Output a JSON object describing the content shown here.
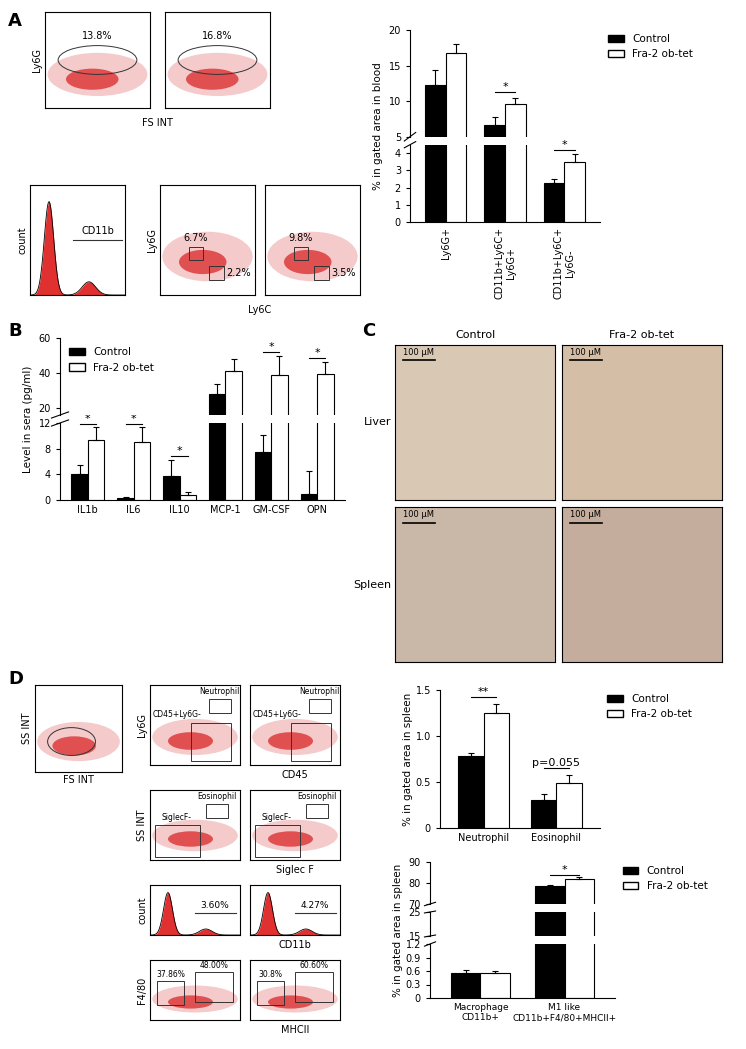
{
  "chart_data": [
    {
      "type": "bar",
      "ylabel": "% in gated area in blood",
      "categories": [
        "Ly6G+",
        "CD11b+Ly6C+\nLy6G+",
        "CD11b+Ly6C+\nLy6G-"
      ],
      "series": [
        {
          "name": "Control",
          "color": "#000000",
          "values": [
            12.2,
            6.7,
            2.25
          ],
          "errors": [
            2.2,
            1.1,
            0.25
          ]
        },
        {
          "name": "Fra-2 ob-tet",
          "color": "#ffffff",
          "values": [
            16.8,
            9.6,
            3.5
          ],
          "errors": [
            1.2,
            0.9,
            0.45
          ]
        }
      ],
      "y_segments": [
        {
          "ylim": [
            0,
            4.5
          ],
          "yticks": [
            0,
            1,
            2,
            3,
            4
          ]
        },
        {
          "ylim": [
            5,
            20
          ],
          "yticks": [
            5,
            10,
            15,
            20
          ]
        }
      ],
      "significance": [
        null,
        "*",
        "*"
      ],
      "legend": "right"
    },
    {
      "type": "bar",
      "ylabel": "Level in sera (pg/ml)",
      "categories": [
        "IL1b",
        "IL6",
        "IL10",
        "MCP-1",
        "GM-CSF",
        "OPN"
      ],
      "series": [
        {
          "name": "Control",
          "color": "#000000",
          "values": [
            4,
            0.3,
            3.8,
            28,
            7.5,
            1
          ],
          "errors": [
            1.5,
            0.1,
            2.5,
            6,
            2.6,
            3.5
          ]
        },
        {
          "name": "Fra-2 ob-tet",
          "color": "#ffffff",
          "values": [
            9.3,
            9,
            0.8,
            41,
            39,
            39.5
          ],
          "errors": [
            2,
            2.3,
            0.5,
            7,
            11,
            7
          ]
        }
      ],
      "y_segments": [
        {
          "ylim": [
            0,
            12
          ],
          "yticks": [
            0,
            4,
            8,
            12
          ]
        },
        {
          "ylim": [
            16,
            60
          ],
          "yticks": [
            20,
            40,
            60
          ]
        }
      ],
      "significance": [
        "*",
        "*",
        "*",
        null,
        "*",
        "*"
      ],
      "legend": "upper left"
    },
    {
      "type": "bar",
      "ylabel": "% in gated area in spleen",
      "categories": [
        "Neutrophil",
        "Eosinophil"
      ],
      "series": [
        {
          "name": "Control",
          "color": "#000000",
          "values": [
            0.78,
            0.3
          ],
          "errors": [
            0.04,
            0.07
          ]
        },
        {
          "name": "Fra-2 ob-tet",
          "color": "#ffffff",
          "values": [
            1.25,
            0.49
          ],
          "errors": [
            0.1,
            0.09
          ]
        }
      ],
      "ylim": [
        0,
        1.5
      ],
      "yticks": [
        0,
        0.5,
        1.0,
        1.5
      ],
      "significance": [
        "**",
        "p=0.055"
      ],
      "legend": "right"
    },
    {
      "type": "bar",
      "ylabel": "% in gated area in spleen",
      "categories": [
        "Macrophage\nCD11b+",
        "M1 like\nCD11b+F4/80+MHCII+"
      ],
      "series": [
        {
          "name": "Control",
          "color": "#000000",
          "values": [
            0.55,
            78.5
          ],
          "errors": [
            0.08,
            0.4
          ]
        },
        {
          "name": "Fra-2 ob-tet",
          "color": "#ffffff",
          "values": [
            0.55,
            82.0
          ],
          "errors": [
            0.05,
            0.8
          ]
        }
      ],
      "y_segments": [
        {
          "ylim": [
            0,
            1.2
          ],
          "yticks": [
            0,
            0.3,
            0.6,
            0.9,
            1.2
          ]
        },
        {
          "ylim": [
            15,
            25
          ],
          "yticks": [
            15,
            25
          ]
        },
        {
          "ylim": [
            70,
            90
          ],
          "yticks": [
            70,
            80,
            90
          ]
        }
      ],
      "significance": [
        null,
        "*"
      ],
      "legend": "right"
    }
  ],
  "panel_labels": [
    "A",
    "B",
    "C",
    "D"
  ],
  "panels": {
    "A": {
      "flow_top": {
        "ylabel": "Ly6G",
        "xlabel": "FS INT",
        "gates": [
          "13.8%",
          "16.8%"
        ]
      },
      "flow_bottom": {
        "hist_ylabel": "count",
        "hist_gate": "CD11b",
        "ylabel": "Ly6G",
        "xlabel": "Ly6C",
        "gates": [
          [
            "6.7%",
            "2.2%"
          ],
          [
            "9.8%",
            "3.5%"
          ]
        ]
      }
    },
    "C": {
      "columns": [
        "Control",
        "Fra-2 ob-tet"
      ],
      "rows": [
        "Liver",
        "Spleen"
      ],
      "scale_bar": "100 μM"
    },
    "D": {
      "scatter": {
        "ylabel": "SS INT",
        "xlabel": "FS INT"
      },
      "ly6g": {
        "ylabel": "Ly6G",
        "xlabel": "CD45",
        "gates": [
          "Neutrophil",
          "CD45+Ly6G-"
        ]
      },
      "siglec": {
        "ylabel": "SS INT",
        "xlabel": "Siglec F",
        "gates": [
          "Eosinophil",
          "SiglecF-"
        ]
      },
      "cd11b": {
        "ylabel": "count",
        "xlabel": "CD11b",
        "gates": [
          "3.60%",
          "4.27%"
        ]
      },
      "f480": {
        "ylabel": "F4/80",
        "xlabel": "MHCII",
        "gates": [
          [
            "37.86%",
            "48.00%"
          ],
          [
            "30.8%",
            "60.60%"
          ]
        ]
      }
    }
  }
}
